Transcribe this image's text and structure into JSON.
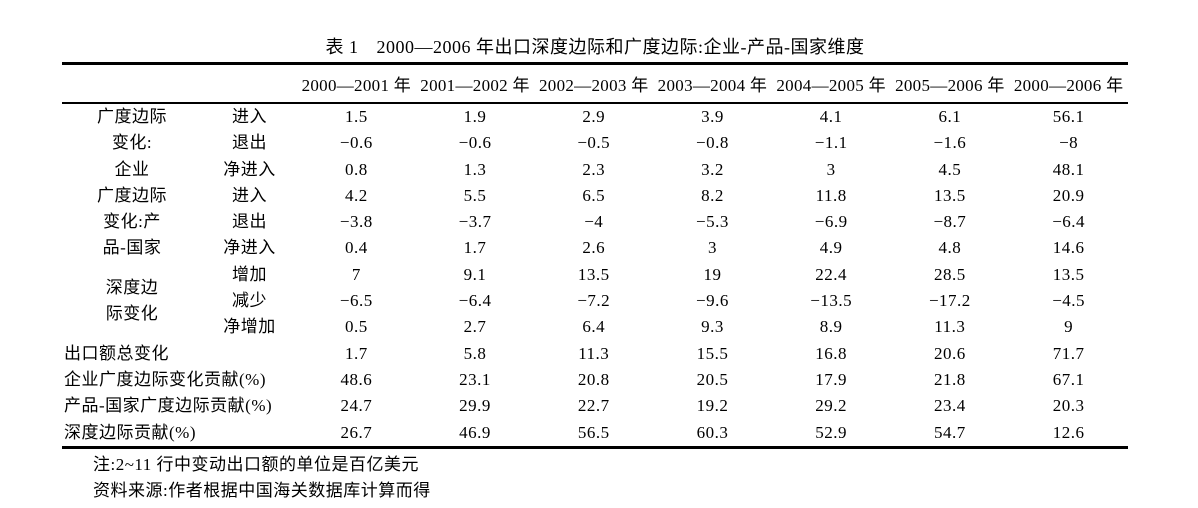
{
  "caption": {
    "label": "表 1",
    "title": "2000—2006 年出口深度边际和广度边际:企业-产品-国家维度"
  },
  "table": {
    "columns": [
      "2000—2001 年",
      "2001—2002 年",
      "2002—2003 年",
      "2003—2004 年",
      "2004—2005 年",
      "2005—2006 年",
      "2000—2006 年"
    ],
    "groups": [
      {
        "label_lines": [
          "广度边际",
          "变化:",
          "企业"
        ],
        "rows": [
          {
            "label": "进入",
            "values": [
              "1.5",
              "1.9",
              "2.9",
              "3.9",
              "4.1",
              "6.1",
              "56.1"
            ]
          },
          {
            "label": "退出",
            "values": [
              "−0.6",
              "−0.6",
              "−0.5",
              "−0.8",
              "−1.1",
              "−1.6",
              "−8"
            ]
          },
          {
            "label": "净进入",
            "values": [
              "0.8",
              "1.3",
              "2.3",
              "3.2",
              "3",
              "4.5",
              "48.1"
            ]
          }
        ]
      },
      {
        "label_lines": [
          "广度边际",
          "变化:产",
          "品-国家"
        ],
        "rows": [
          {
            "label": "进入",
            "values": [
              "4.2",
              "5.5",
              "6.5",
              "8.2",
              "11.8",
              "13.5",
              "20.9"
            ]
          },
          {
            "label": "退出",
            "values": [
              "−3.8",
              "−3.7",
              "−4",
              "−5.3",
              "−6.9",
              "−8.7",
              "−6.4"
            ]
          },
          {
            "label": "净进入",
            "values": [
              "0.4",
              "1.7",
              "2.6",
              "3",
              "4.9",
              "4.8",
              "14.6"
            ]
          }
        ]
      },
      {
        "label_lines": [
          "深度边",
          "际变化"
        ],
        "rows": [
          {
            "label": "增加",
            "values": [
              "7",
              "9.1",
              "13.5",
              "19",
              "22.4",
              "28.5",
              "13.5"
            ]
          },
          {
            "label": "减少",
            "values": [
              "−6.5",
              "−6.4",
              "−7.2",
              "−9.6",
              "−13.5",
              "−17.2",
              "−4.5"
            ]
          },
          {
            "label": "净增加",
            "values": [
              "0.5",
              "2.7",
              "6.4",
              "9.3",
              "8.9",
              "11.3",
              "9"
            ]
          }
        ]
      }
    ],
    "summary_rows": [
      {
        "label": "出口额总变化",
        "values": [
          "1.7",
          "5.8",
          "11.3",
          "15.5",
          "16.8",
          "20.6",
          "71.7"
        ]
      },
      {
        "label": "企业广度边际变化贡献(%)",
        "values": [
          "48.6",
          "23.1",
          "20.8",
          "20.5",
          "17.9",
          "21.8",
          "67.1"
        ]
      },
      {
        "label": "产品-国家广度边际贡献(%)",
        "values": [
          "24.7",
          "29.9",
          "22.7",
          "19.2",
          "29.2",
          "23.4",
          "20.3"
        ]
      },
      {
        "label": "深度边际贡献(%)",
        "values": [
          "26.7",
          "46.9",
          "56.5",
          "60.3",
          "52.9",
          "54.7",
          "12.6"
        ]
      }
    ]
  },
  "notes": {
    "unit_note": "注:2~11 行中变动出口额的单位是百亿美元",
    "source_note": "资料来源:作者根据中国海关数据库计算而得"
  }
}
